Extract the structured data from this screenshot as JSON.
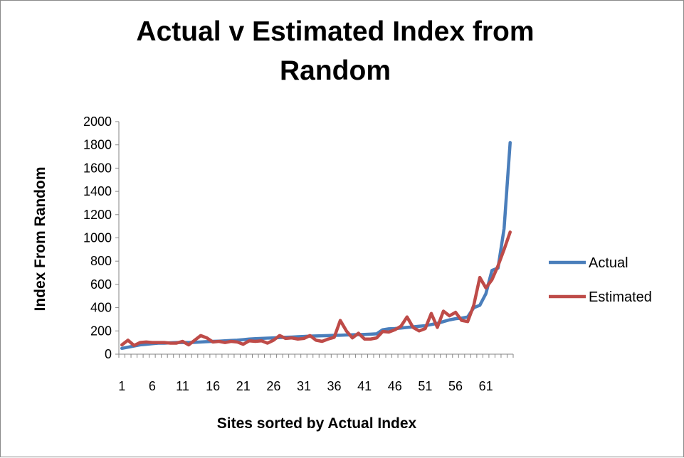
{
  "chart_data": {
    "type": "line",
    "title_lines": [
      "Actual v Estimated Index from",
      "Random"
    ],
    "xlabel": "Sites sorted by Actual Index",
    "ylabel": "Index From Random",
    "ylim": [
      0,
      2000
    ],
    "yticks": [
      0,
      200,
      400,
      600,
      800,
      1000,
      1200,
      1400,
      1600,
      1800,
      2000
    ],
    "xticks": [
      1,
      6,
      11,
      16,
      21,
      26,
      31,
      36,
      41,
      46,
      51,
      56,
      61
    ],
    "x_count": 65,
    "grid": false,
    "legend_position": "right",
    "series": [
      {
        "name": "Actual",
        "color": "#4a7ebb",
        "values": [
          50,
          60,
          70,
          80,
          85,
          90,
          95,
          95,
          98,
          100,
          100,
          100,
          102,
          105,
          108,
          110,
          112,
          115,
          118,
          120,
          125,
          130,
          133,
          135,
          138,
          140,
          143,
          145,
          147,
          150,
          152,
          155,
          157,
          158,
          160,
          162,
          163,
          165,
          167,
          168,
          170,
          172,
          175,
          210,
          218,
          220,
          225,
          230,
          235,
          240,
          245,
          255,
          265,
          280,
          295,
          305,
          310,
          320,
          400,
          420,
          520,
          720,
          740,
          1080,
          1820
        ]
      },
      {
        "name": "Estimated",
        "color": "#be4b48",
        "values": [
          80,
          120,
          75,
          100,
          105,
          100,
          100,
          100,
          95,
          95,
          110,
          80,
          120,
          160,
          140,
          105,
          110,
          100,
          110,
          105,
          85,
          115,
          110,
          115,
          95,
          120,
          160,
          135,
          140,
          130,
          135,
          160,
          120,
          110,
          130,
          145,
          290,
          200,
          140,
          180,
          130,
          130,
          140,
          195,
          190,
          210,
          240,
          320,
          230,
          200,
          220,
          350,
          230,
          370,
          330,
          360,
          290,
          280,
          420,
          660,
          570,
          640,
          760,
          900,
          1050
        ]
      }
    ]
  }
}
